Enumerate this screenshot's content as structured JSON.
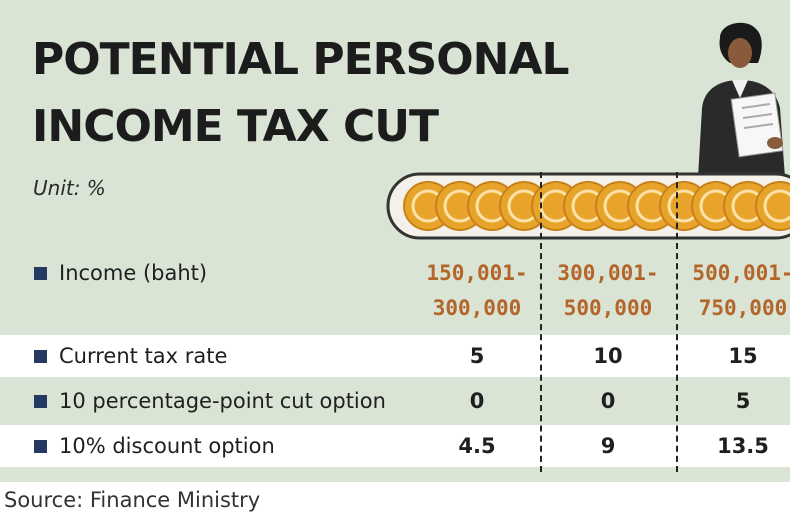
{
  "chart_data": {
    "type": "table",
    "title_lines": [
      "POTENTIAL PERSONAL",
      "INCOME TAX CUT"
    ],
    "unit": "Unit: %",
    "header_label": "Income (baht)",
    "columns": [
      {
        "top": "150,001-",
        "bottom": "300,000"
      },
      {
        "top": "300,001-",
        "bottom": "500,000"
      },
      {
        "top": "500,001-",
        "bottom": "750,000"
      }
    ],
    "rows": [
      {
        "label": "Current tax rate",
        "values": [
          "5",
          "10",
          "15"
        ]
      },
      {
        "label": "10 percentage-point cut option",
        "values": [
          "0",
          "0",
          "5"
        ]
      },
      {
        "label": "10% discount option",
        "values": [
          "4.5",
          "9",
          "13.5"
        ]
      }
    ],
    "source": "Source: Finance Ministry"
  },
  "colors": {
    "background": "#d9e4d5",
    "row_band": "#ffffff",
    "header_accent": "#b4662a",
    "bullet": "#243a63",
    "coin": "#e8a42a"
  },
  "icons": [
    "coin-row-icon",
    "person-with-document-icon"
  ]
}
